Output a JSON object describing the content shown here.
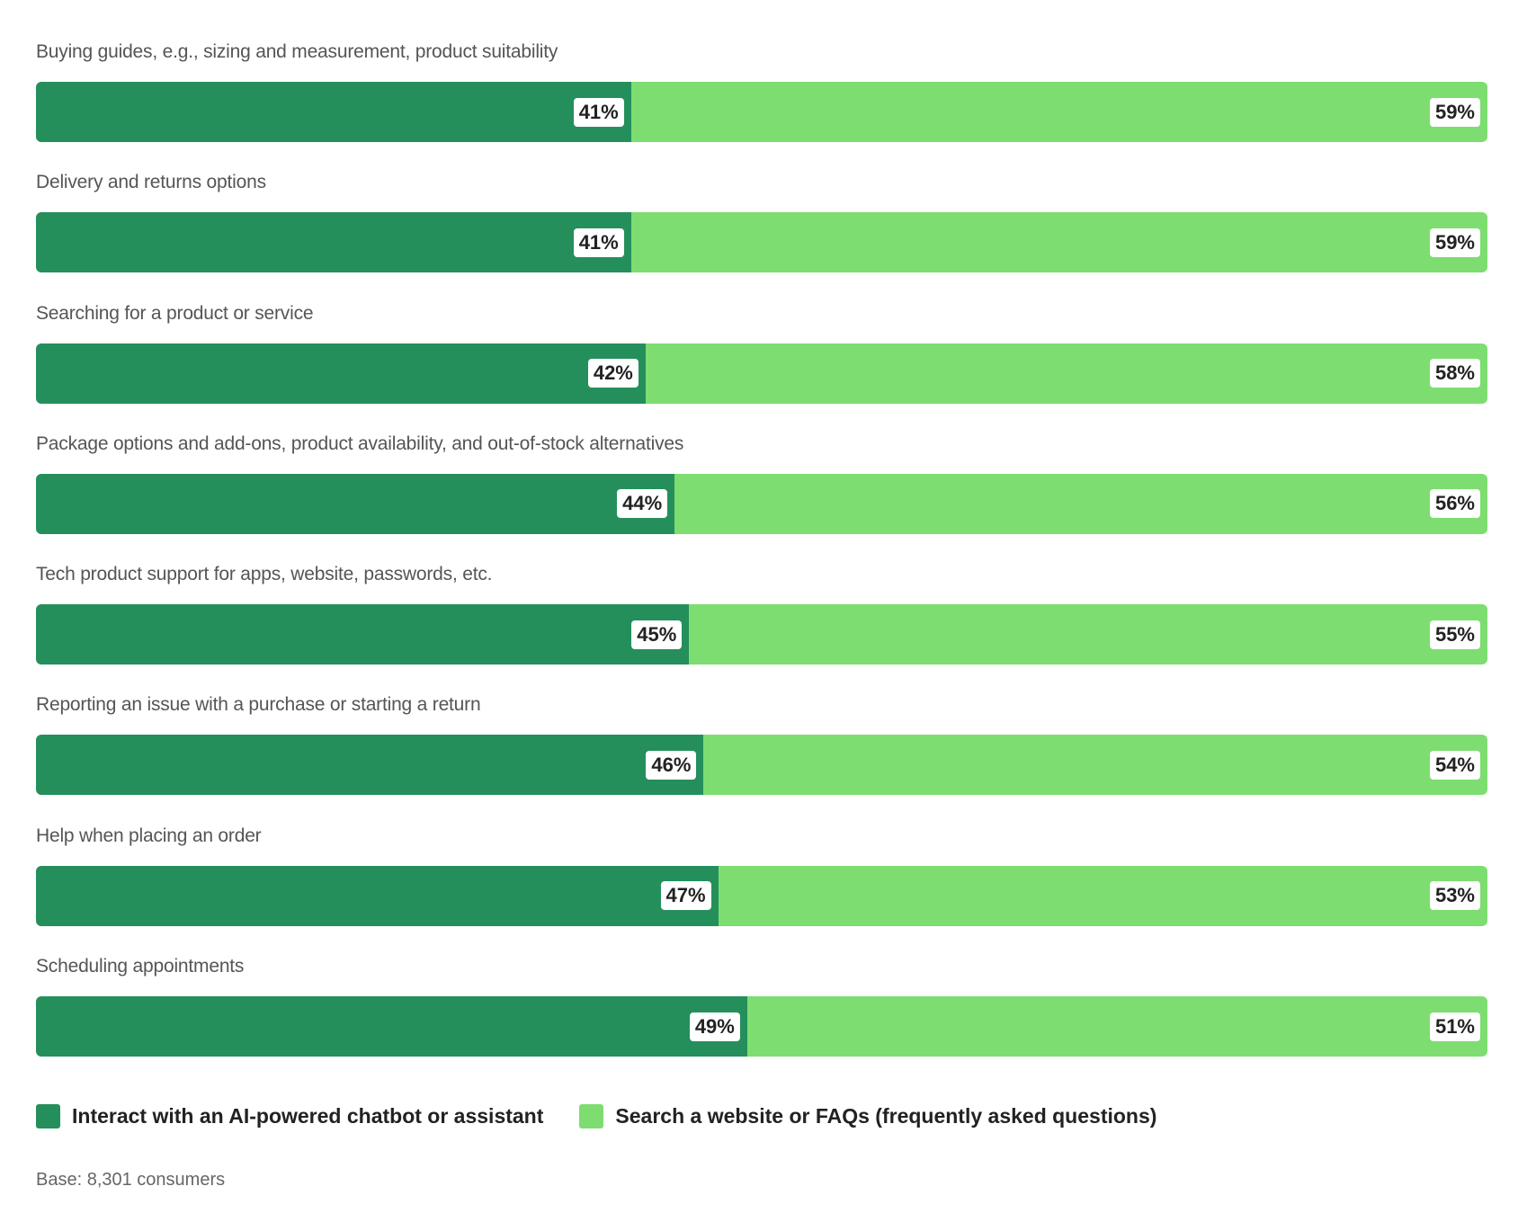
{
  "chart_data": {
    "type": "bar",
    "stacked": true,
    "orientation": "horizontal",
    "categories": [
      "Buying guides, e.g., sizing and measurement, product suitability",
      "Delivery and returns options",
      "Searching for a product or service",
      "Package options and add-ons, product availability, and out-of-stock alternatives",
      "Tech product support for apps, website, passwords, etc.",
      "Reporting an issue with a purchase or starting a return",
      "Help when placing an order",
      "Scheduling appointments"
    ],
    "series": [
      {
        "name": "Interact with an AI-powered chatbot or assistant",
        "color": "#258f5c",
        "values": [
          41,
          41,
          42,
          44,
          45,
          46,
          47,
          49
        ]
      },
      {
        "name": "Search a website or FAQs (frequently asked questions)",
        "color": "#7ddd70",
        "values": [
          59,
          59,
          58,
          56,
          55,
          54,
          53,
          51
        ]
      }
    ],
    "unit": "%",
    "legend_position": "bottom-left",
    "footnote": "Base: 8,301 consumers"
  }
}
